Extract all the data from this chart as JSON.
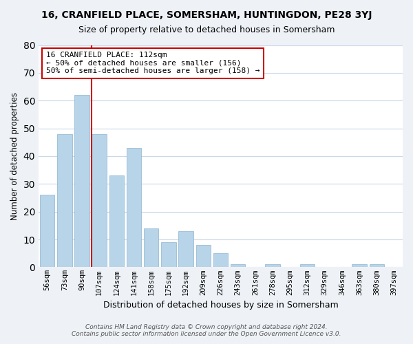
{
  "title": "16, CRANFIELD PLACE, SOMERSHAM, HUNTINGDON, PE28 3YJ",
  "subtitle": "Size of property relative to detached houses in Somersham",
  "xlabel": "Distribution of detached houses by size in Somersham",
  "ylabel": "Number of detached properties",
  "footer_line1": "Contains HM Land Registry data © Crown copyright and database right 2024.",
  "footer_line2": "Contains public sector information licensed under the Open Government Licence v3.0.",
  "bin_labels": [
    "56sqm",
    "73sqm",
    "90sqm",
    "107sqm",
    "124sqm",
    "141sqm",
    "158sqm",
    "175sqm",
    "192sqm",
    "209sqm",
    "226sqm",
    "243sqm",
    "261sqm",
    "278sqm",
    "295sqm",
    "312sqm",
    "329sqm",
    "346sqm",
    "363sqm",
    "380sqm",
    "397sqm"
  ],
  "bar_values": [
    26,
    48,
    62,
    48,
    33,
    43,
    14,
    9,
    13,
    8,
    5,
    1,
    0,
    1,
    0,
    1,
    0,
    0,
    1,
    1,
    0
  ],
  "bar_color": "#b8d4e8",
  "bar_edge_color": "#8ab4d0",
  "vline_color": "#cc0000",
  "annotation_text": "16 CRANFIELD PLACE: 112sqm\n← 50% of detached houses are smaller (156)\n50% of semi-detached houses are larger (158) →",
  "annotation_box_color": "#ffffff",
  "annotation_box_edge": "#cc0000",
  "ylim": [
    0,
    80
  ],
  "yticks": [
    0,
    10,
    20,
    30,
    40,
    50,
    60,
    70,
    80
  ],
  "background_color": "#eef2f7",
  "plot_bg_color": "#ffffff",
  "grid_color": "#c8d8e8"
}
